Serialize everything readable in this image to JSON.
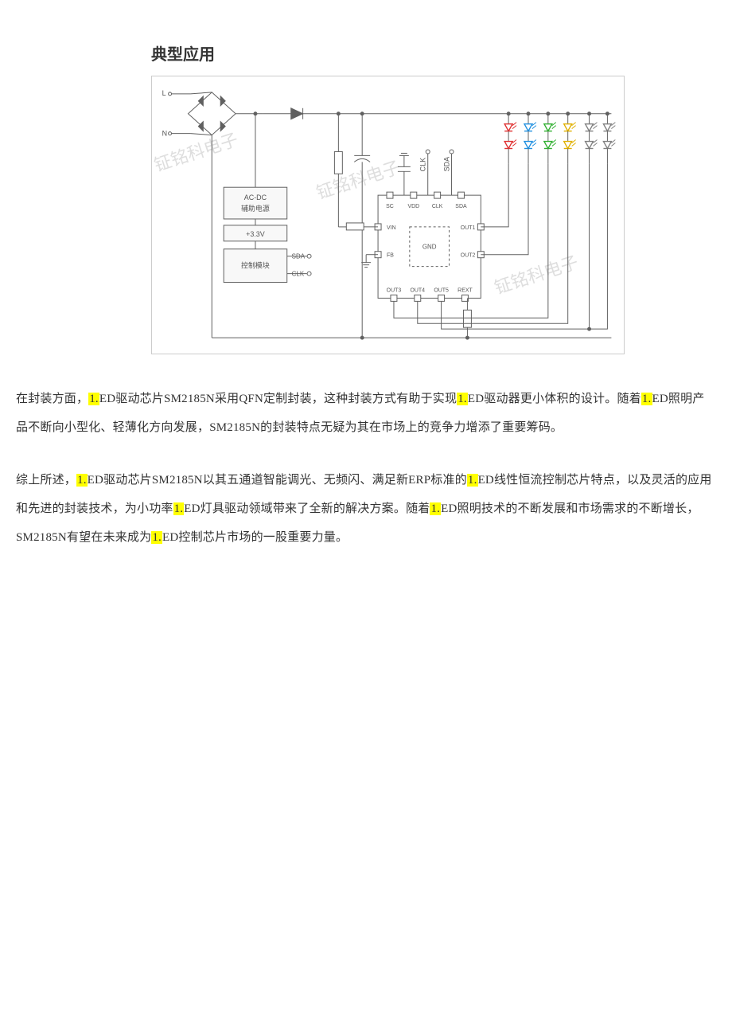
{
  "heading": "典型应用",
  "diagram": {
    "watermark_text": "钲铭科电子",
    "ac_input": {
      "L": "L",
      "N": "N"
    },
    "blocks": {
      "acdc": {
        "line1": "AC-DC",
        "line2": "辅助电源"
      },
      "v33": "+3.3V",
      "ctrl": "控制模块",
      "ctrl_sda": "SDA",
      "ctrl_clk": "CLK"
    },
    "chip": {
      "center": "GND",
      "top_pins": [
        "SC",
        "VDD",
        "CLK",
        "SDA"
      ],
      "left_pins": [
        "VIN",
        "FB"
      ],
      "right_pins": [
        "OUT1",
        "OUT2"
      ],
      "bottom_pins": [
        "OUT3",
        "OUT4",
        "OUT5",
        "REXT"
      ],
      "clk_bus_label": "CLK",
      "sda_bus_label": "SDA"
    },
    "led_colors": {
      "row1": [
        "#e03030",
        "#2090e0",
        "#30b030",
        "#e0b000",
        "#808080",
        "#808080"
      ],
      "row2": [
        "#e03030",
        "#2090e0",
        "#30b030",
        "#e0b000",
        "#808080",
        "#808080"
      ]
    },
    "wire_color": "#606060",
    "block_border": "#606060",
    "block_fill": "#f8f8f8",
    "text_color": "#555555",
    "pin_font_size": 7
  },
  "para1": {
    "parts": [
      {
        "t": "在封装方面，",
        "hl": false
      },
      {
        "t": "1.",
        "hl": true
      },
      {
        "t": "ED驱动芯片SM2185N采用QFN定制封装，这种封装方式有助于实现",
        "hl": false
      },
      {
        "t": "1.",
        "hl": true
      },
      {
        "t": "ED驱动器更小体积的设计。随着",
        "hl": false
      },
      {
        "t": "1.",
        "hl": true
      },
      {
        "t": "ED照明产品不断向小型化、轻薄化方向发展，SM2185N的封装特点无疑为其在市场上的竞争力增添了重要筹码。",
        "hl": false
      }
    ]
  },
  "para2": {
    "parts": [
      {
        "t": "综上所述，",
        "hl": false
      },
      {
        "t": "1.",
        "hl": true
      },
      {
        "t": "ED驱动芯片SM2185N以其五通道智能调光、无频闪、满足新ERP标准的",
        "hl": false
      },
      {
        "t": "1.",
        "hl": true
      },
      {
        "t": "ED线性恒流控制芯片特点，以及灵活的应用和先进的封装技术，为小功率",
        "hl": false
      },
      {
        "t": "1.",
        "hl": true
      },
      {
        "t": "ED灯具驱动领域带来了全新的解决方案。随着",
        "hl": false
      },
      {
        "t": "1.",
        "hl": true
      },
      {
        "t": "ED照明技术的不断发展和市场需求的不断增长，SM2185N有望在未来成为",
        "hl": false
      },
      {
        "t": "1.",
        "hl": true
      },
      {
        "t": "ED控制芯片市场的一股重要力量。",
        "hl": false
      }
    ]
  }
}
